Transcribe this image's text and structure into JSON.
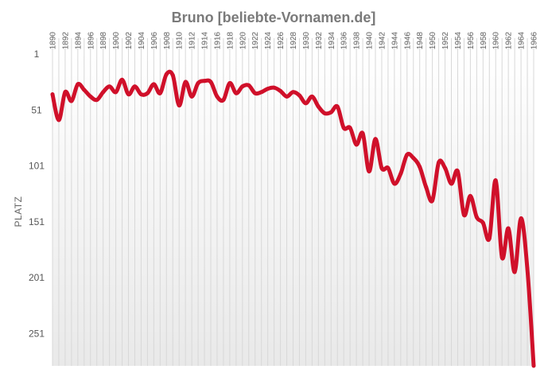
{
  "chart_data": {
    "type": "line",
    "title": "Bruno [beliebte-Vornamen.de]",
    "ylabel": "PLATZ",
    "xlabel": "",
    "y_reversed": true,
    "ylim": [
      1,
      280
    ],
    "xlim": [
      1890,
      1966
    ],
    "grid": "vertical lines per year",
    "line_color": "#d0102a",
    "y_ticks": [
      "1",
      "51",
      "101",
      "151",
      "201",
      "251"
    ],
    "x_ticks": [
      "1890",
      "1892",
      "1894",
      "1896",
      "1898",
      "1900",
      "1902",
      "1904",
      "1906",
      "1908",
      "1910",
      "1912",
      "1914",
      "1916",
      "1918",
      "1920",
      "1922",
      "1924",
      "1926",
      "1928",
      "1930",
      "1932",
      "1934",
      "1936",
      "1938",
      "1940",
      "1942",
      "1944",
      "1946",
      "1948",
      "1950",
      "1952",
      "1954",
      "1956",
      "1958",
      "1960",
      "1962",
      "1964",
      "1966"
    ],
    "series": [
      {
        "x": [
          1890,
          1891,
          1892,
          1893,
          1894,
          1895,
          1896,
          1897,
          1898,
          1899,
          1900,
          1901,
          1902,
          1903,
          1904,
          1905,
          1906,
          1907,
          1908,
          1909,
          1910,
          1911,
          1912,
          1913,
          1914,
          1915,
          1916,
          1917,
          1918,
          1919,
          1920,
          1921,
          1922,
          1923,
          1924,
          1925,
          1926,
          1927,
          1928,
          1929,
          1930,
          1931,
          1932,
          1933,
          1934,
          1935,
          1936,
          1937,
          1938,
          1939,
          1940,
          1941,
          1942,
          1943,
          1944,
          1945,
          1946,
          1947,
          1948,
          1949,
          1950,
          1951,
          1952,
          1953,
          1954,
          1955,
          1956,
          1957,
          1958,
          1959,
          1960,
          1961,
          1962,
          1963,
          1964,
          1965,
          1966
        ],
        "y": [
          37,
          60,
          35,
          43,
          28,
          33,
          39,
          42,
          35,
          30,
          35,
          24,
          37,
          30,
          37,
          36,
          28,
          36,
          19,
          20,
          47,
          26,
          39,
          27,
          25,
          26,
          39,
          42,
          27,
          36,
          30,
          29,
          36,
          35,
          32,
          31,
          34,
          39,
          35,
          38,
          45,
          39,
          48,
          54,
          53,
          48,
          67,
          67,
          82,
          72,
          106,
          77,
          103,
          103,
          117,
          108,
          91,
          94,
          102,
          120,
          132,
          98,
          103,
          117,
          106,
          145,
          128,
          147,
          152,
          166,
          114,
          183,
          157,
          196,
          148,
          193,
          280
        ]
      }
    ]
  }
}
